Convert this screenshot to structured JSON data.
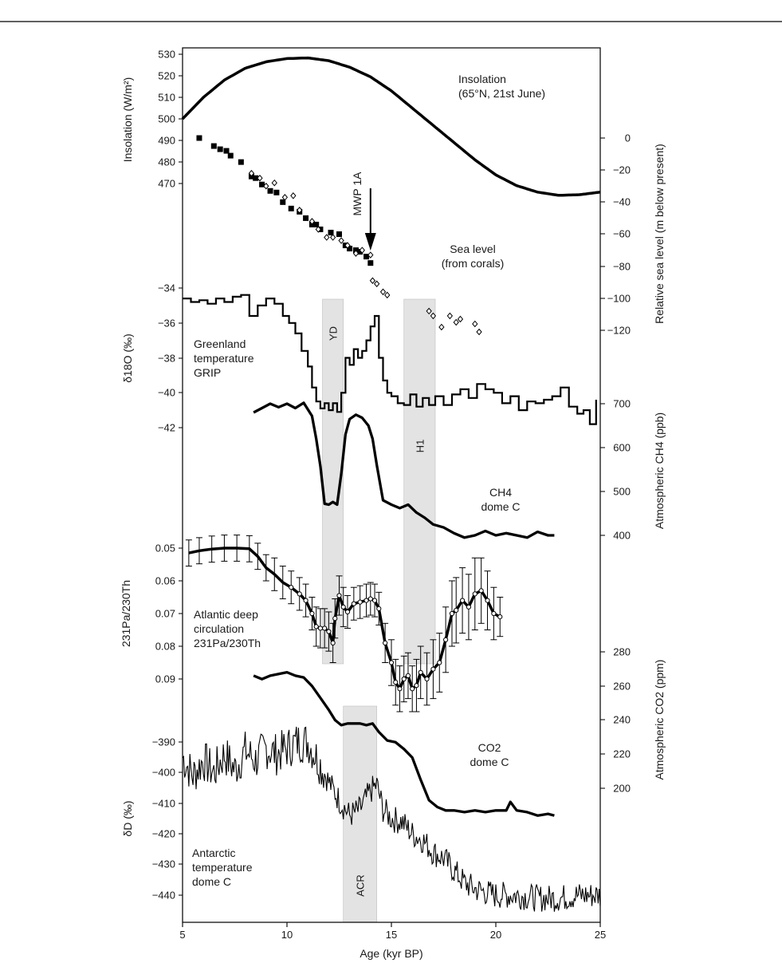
{
  "chart_data": {
    "type": "line",
    "x_axis": {
      "label": "Age (kyr BP)",
      "range": [
        5,
        25
      ],
      "ticks": [
        "5",
        "10",
        "15",
        "20",
        "25"
      ]
    },
    "bands": [
      {
        "label": "YD",
        "x": [
          11.7,
          12.7
        ],
        "span": "greenland-to-pa"
      },
      {
        "label": "H1",
        "x": [
          15.6,
          17.1
        ],
        "span": "greenland-to-pa"
      },
      {
        "label": "ACR",
        "x": [
          12.7,
          14.3
        ],
        "span": "co2-to-antarctic"
      }
    ],
    "arrow": {
      "label": "MWP 1A",
      "x": 14.0
    },
    "panels": [
      {
        "id": "insolation",
        "label": [
          "Insolation",
          "(65°N, 21st June)"
        ],
        "axis_title": "Insolation (W/m²)",
        "axis_side": "left",
        "ticks": [
          "530",
          "520",
          "510",
          "500",
          "490",
          "480",
          "470"
        ],
        "x": [
          5,
          6,
          7,
          8,
          9,
          10,
          11,
          12,
          13,
          14,
          15,
          16,
          17,
          18,
          19,
          20,
          21,
          22,
          23,
          24,
          25
        ],
        "y": [
          500,
          510,
          518,
          523.5,
          526.5,
          528,
          528.3,
          527,
          524,
          519.5,
          513,
          505,
          497,
          489,
          481,
          474,
          469,
          466,
          464.5,
          464.8,
          466
        ]
      },
      {
        "id": "sea-level",
        "label": [
          "Sea level",
          "(from corals)"
        ],
        "axis_title": "Relative sea level (m below present)",
        "axis_side": "right",
        "ticks": [
          "0",
          "−20",
          "−40",
          "−60",
          "−80",
          "−100",
          "−120"
        ],
        "squares": {
          "x": [
            5.8,
            6.5,
            6.8,
            7.1,
            7.3,
            7.8,
            8.3,
            8.5,
            8.8,
            9.2,
            9.5,
            9.8,
            10.2,
            10.6,
            10.9,
            11.2,
            11.4,
            11.6,
            12.1,
            12.5,
            12.8,
            13.0,
            13.3,
            13.5,
            13.8,
            14.0
          ],
          "y": [
            0,
            -5,
            -7,
            -8,
            -11,
            -15,
            -24,
            -25,
            -29,
            -33,
            -34,
            -40,
            -44,
            -46,
            -50,
            -54,
            -54,
            -57,
            -59,
            -60,
            -67,
            -69,
            -70,
            -71,
            -74,
            -78
          ]
        },
        "diamonds": {
          "x": [
            8.3,
            8.7,
            9.0,
            9.4,
            9.9,
            10.3,
            10.6,
            11.2,
            11.5,
            11.9,
            12.2,
            12.6,
            12.9,
            13.3,
            13.6,
            14.0,
            14.1,
            14.3,
            14.6,
            14.8,
            16.8,
            17.0,
            17.4,
            17.8,
            18.1,
            18.3,
            19.0,
            19.2
          ],
          "y": [
            -22,
            -25,
            -30,
            -28,
            -37,
            -36,
            -45,
            -52,
            -57,
            -62,
            -62,
            -64,
            -67,
            -72,
            -70,
            -73,
            -89,
            -91,
            -96,
            -98,
            -108,
            -111,
            -118,
            -111,
            -115,
            -113,
            -116,
            -121
          ]
        }
      },
      {
        "id": "greenland",
        "label": [
          "Greenland",
          "temperature",
          "GRIP"
        ],
        "axis_title": "δ18O (‰)",
        "axis_side": "left",
        "ticks": [
          "−34",
          "−36",
          "−38",
          "−40",
          "−42"
        ],
        "x": [
          5,
          5.4,
          5.8,
          6.2,
          6.6,
          7.0,
          7.4,
          7.8,
          8.2,
          8.6,
          9.0,
          9.4,
          9.8,
          10.1,
          10.4,
          10.7,
          11.0,
          11.2,
          11.4,
          11.6,
          11.8,
          12.0,
          12.2,
          12.4,
          12.6,
          12.8,
          13.0,
          13.2,
          13.4,
          13.6,
          13.8,
          14.0,
          14.2,
          14.4,
          14.6,
          14.8,
          15.0,
          15.3,
          15.6,
          15.9,
          16.2,
          16.5,
          16.8,
          17.1,
          17.5,
          17.9,
          18.3,
          18.7,
          19.1,
          19.5,
          19.9,
          20.3,
          20.7,
          21.1,
          21.5,
          21.9,
          22.3,
          22.7,
          23.1,
          23.5,
          23.9,
          24.2,
          24.5,
          24.8
        ],
        "y": [
          -34.6,
          -34.8,
          -34.7,
          -34.9,
          -34.6,
          -34.8,
          -34.5,
          -34.4,
          -35.6,
          -35.0,
          -34.6,
          -34.9,
          -35.6,
          -36.0,
          -36.6,
          -37.6,
          -38.5,
          -39.7,
          -40.5,
          -40.9,
          -40.6,
          -41.0,
          -40.6,
          -41.1,
          -40.0,
          -38.0,
          -38.4,
          -37.5,
          -38.0,
          -37.6,
          -37.0,
          -36.2,
          -35.6,
          -38.0,
          -39.3,
          -40.0,
          -40.2,
          -40.6,
          -40.7,
          -40.1,
          -40.8,
          -40.3,
          -40.7,
          -40.2,
          -40.7,
          -40.1,
          -39.8,
          -40.3,
          -39.5,
          -39.8,
          -40.0,
          -40.6,
          -40.2,
          -41.0,
          -40.5,
          -40.6,
          -40.4,
          -40.2,
          -39.7,
          -40.8,
          -41.2,
          -41.0,
          -41.8,
          -40.4
        ]
      },
      {
        "id": "ch4",
        "label": [
          "CH4",
          "dome C"
        ],
        "axis_title": "Atmospheric CH4 (ppb)",
        "axis_side": "right",
        "ticks": [
          "700",
          "600",
          "500",
          "400"
        ],
        "x": [
          8.4,
          8.8,
          9.2,
          9.6,
          10.0,
          10.4,
          10.8,
          11.2,
          11.4,
          11.6,
          11.8,
          12.0,
          12.2,
          12.4,
          12.6,
          12.8,
          13.0,
          13.3,
          13.6,
          13.9,
          14.1,
          14.3,
          14.6,
          15.0,
          15.4,
          15.8,
          16.2,
          16.6,
          17.0,
          17.5,
          18.0,
          18.5,
          19.0,
          19.5,
          20.0,
          20.5,
          21.0,
          21.5,
          22.0,
          22.5,
          22.8
        ],
        "y": [
          680,
          690,
          700,
          692,
          700,
          690,
          702,
          672,
          620,
          558,
          472,
          470,
          476,
          470,
          540,
          630,
          665,
          675,
          668,
          650,
          620,
          560,
          480,
          470,
          462,
          470,
          452,
          440,
          425,
          418,
          405,
          395,
          400,
          410,
          400,
          405,
          400,
          395,
          408,
          400,
          400
        ]
      },
      {
        "id": "pa-th",
        "label": [
          "Atlantic deep",
          "circulation",
          "231Pa/230Th"
        ],
        "axis_title": "231Pa/230Th",
        "axis_side": "left",
        "ticks": [
          "0.05",
          "0.06",
          "0.07",
          "0.08",
          "0.09"
        ],
        "x": [
          5.3,
          5.8,
          6.4,
          7.0,
          7.6,
          8.2,
          8.6,
          9.0,
          9.4,
          9.8,
          10.2,
          10.6,
          10.9,
          11.2,
          11.4,
          11.6,
          11.8,
          12.0,
          12.2,
          12.3,
          12.5,
          12.7,
          12.9,
          13.2,
          13.5,
          13.8,
          14.0,
          14.2,
          14.4,
          14.7,
          15.0,
          15.2,
          15.4,
          15.6,
          15.8,
          16.0,
          16.2,
          16.4,
          16.7,
          17.0,
          17.3,
          17.6,
          17.9,
          18.1,
          18.4,
          18.7,
          19.0,
          19.3,
          19.6,
          19.9,
          20.2
        ],
        "y": [
          0.0515,
          0.0508,
          0.0503,
          0.05,
          0.05,
          0.0502,
          0.0525,
          0.056,
          0.058,
          0.0605,
          0.062,
          0.064,
          0.066,
          0.07,
          0.074,
          0.0745,
          0.0745,
          0.0755,
          0.079,
          0.0715,
          0.0645,
          0.068,
          0.0695,
          0.067,
          0.0665,
          0.066,
          0.0655,
          0.066,
          0.0685,
          0.079,
          0.085,
          0.091,
          0.093,
          0.09,
          0.089,
          0.093,
          0.092,
          0.088,
          0.09,
          0.087,
          0.085,
          0.078,
          0.07,
          0.069,
          0.066,
          0.068,
          0.064,
          0.063,
          0.066,
          0.07,
          0.071
        ],
        "error": [
          0.004,
          0.004,
          0.004,
          0.004,
          0.004,
          0.004,
          0.004,
          0.004,
          0.005,
          0.005,
          0.005,
          0.005,
          0.005,
          0.005,
          0.006,
          0.006,
          0.006,
          0.006,
          0.006,
          0.006,
          0.006,
          0.006,
          0.005,
          0.005,
          0.005,
          0.005,
          0.005,
          0.005,
          0.005,
          0.006,
          0.007,
          0.007,
          0.007,
          0.007,
          0.007,
          0.007,
          0.008,
          0.008,
          0.008,
          0.009,
          0.009,
          0.01,
          0.01,
          0.01,
          0.01,
          0.01,
          0.011,
          0.01,
          0.009,
          0.008,
          0.006
        ]
      },
      {
        "id": "co2",
        "label": [
          "CO2",
          "dome C"
        ],
        "axis_title": "Atmospheric CO2 (ppm)",
        "axis_side": "right",
        "ticks": [
          "280",
          "260",
          "240",
          "220",
          "200"
        ],
        "x": [
          8.4,
          8.8,
          9.2,
          9.6,
          10.0,
          10.4,
          10.8,
          11.2,
          11.6,
          12.0,
          12.3,
          12.6,
          12.9,
          13.2,
          13.5,
          13.8,
          14.1,
          14.4,
          14.8,
          15.2,
          15.6,
          16.0,
          16.4,
          16.8,
          17.2,
          17.6,
          18.0,
          18.5,
          19.0,
          19.5,
          20.0,
          20.5,
          20.7,
          21.0,
          21.5,
          22.0,
          22.5,
          22.8
        ],
        "y": [
          266,
          264,
          266,
          267,
          268,
          266,
          265,
          260,
          253,
          246,
          240,
          237,
          238,
          238,
          238,
          237,
          238,
          233,
          228,
          227,
          223,
          218,
          205,
          193,
          189,
          187,
          187,
          186,
          187,
          186,
          187,
          187,
          192,
          187,
          186,
          184,
          185,
          184
        ]
      },
      {
        "id": "antarctic",
        "label": [
          "Antarctic",
          "temperature",
          "dome C"
        ],
        "axis_title": "δD (‰)",
        "axis_side": "left",
        "ticks": [
          "−390",
          "−400",
          "−410",
          "−420",
          "−430",
          "−440"
        ],
        "x": [
          5,
          5.5,
          6,
          6.5,
          7,
          7.5,
          8,
          8.5,
          9,
          9.5,
          10,
          10.5,
          11,
          11.5,
          12,
          12.5,
          13,
          13.5,
          14,
          14.3,
          14.6,
          15,
          15.5,
          16,
          16.5,
          17,
          17.5,
          18,
          18.5,
          19,
          19.5,
          20,
          21,
          22,
          23,
          24,
          25
        ],
        "y": [
          -395,
          -401,
          -396,
          -400,
          -394,
          -399,
          -393,
          -396,
          -392,
          -394,
          -392,
          -390,
          -390,
          -396,
          -403,
          -409,
          -414,
          -412,
          -406,
          -404,
          -412,
          -415,
          -416,
          -420,
          -422,
          -426,
          -428,
          -432,
          -436,
          -438,
          -439,
          -440,
          -440,
          -441,
          -441,
          -440,
          -440
        ]
      }
    ]
  }
}
